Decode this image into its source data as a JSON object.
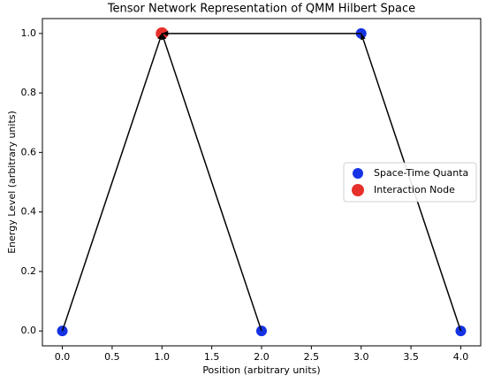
{
  "chart_data": {
    "type": "scatter",
    "title": "Tensor Network Representation of QMM Hilbert Space",
    "x_label": "Position (arbitrary units)",
    "y_label": "Energy Level (arbitrary units)",
    "series": [
      {
        "name": "Space-Time Quanta",
        "color": "#1533e5",
        "x": [
          0,
          2,
          3,
          4
        ],
        "values": [
          0,
          0,
          1,
          0
        ]
      },
      {
        "name": "Interaction Node",
        "color": "#e8302a",
        "x": [
          1
        ],
        "values": [
          1
        ]
      }
    ],
    "edges": [
      {
        "x": [
          0,
          1
        ],
        "y": [
          0,
          1
        ]
      },
      {
        "x": [
          2,
          1
        ],
        "y": [
          0,
          1
        ]
      },
      {
        "x": [
          4,
          3
        ],
        "y": [
          0,
          1
        ]
      },
      {
        "x": [
          3,
          1
        ],
        "y": [
          1,
          1
        ]
      }
    ],
    "edge_color": "#000000",
    "xlim": [
      -0.2,
      4.2
    ],
    "ylim": [
      -0.05,
      1.05
    ],
    "xticks": [
      {
        "value": 0,
        "label": "0.0"
      },
      0.5,
      {
        "value": 1,
        "label": "1.0"
      },
      1.5,
      {
        "value": 2,
        "label": "2.0"
      },
      2.5,
      {
        "value": 3,
        "label": "3.0"
      },
      3.5,
      {
        "value": 4,
        "label": "4.0"
      }
    ],
    "yticks": [
      {
        "value": 0,
        "label": "0.0"
      },
      0.2,
      0.4,
      0.6,
      0.8,
      {
        "value": 1,
        "label": "1.0"
      }
    ],
    "grid": false,
    "legend_loc": "center right"
  }
}
